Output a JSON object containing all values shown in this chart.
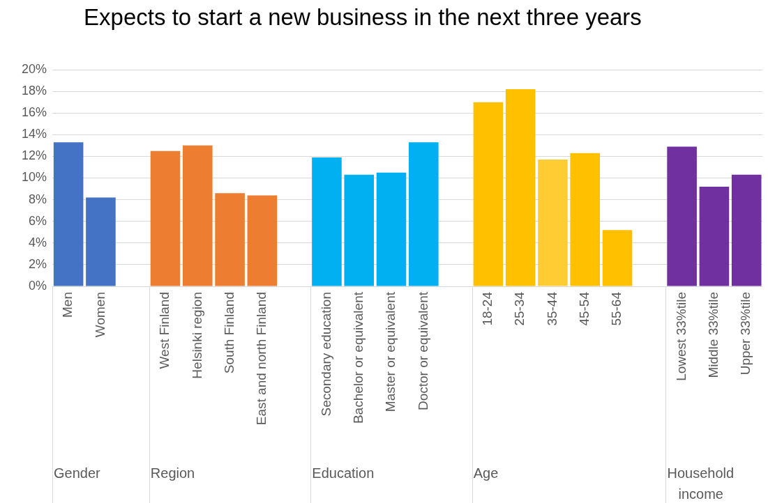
{
  "chart_data": {
    "type": "bar",
    "title": "Expects to start a new business in the next three years",
    "categories": [
      "Men",
      "Women",
      null,
      "West Finland",
      "Helsinki region",
      "South Finland",
      "East and north Finland",
      null,
      "Secondary education",
      "Bachelor or equivalent",
      "Master or equivalent",
      "Doctor or equivalent",
      null,
      "18-24",
      "25-34",
      "35-44",
      "45-54",
      "55-64",
      null,
      "Lowest 33%tile",
      "Middle 33%tile",
      "Upper 33%tile"
    ],
    "values": [
      13.3,
      8.2,
      null,
      12.5,
      13.0,
      8.6,
      8.4,
      null,
      11.9,
      10.3,
      10.5,
      13.3,
      null,
      17.0,
      18.2,
      11.7,
      12.3,
      5.2,
      null,
      12.9,
      9.2,
      10.3
    ],
    "colors": [
      "#4472c4",
      "#4472c4",
      null,
      "#ed7d31",
      "#ed7d31",
      "#ed7d31",
      "#ed7d31",
      null,
      "#00b0f0",
      "#00b0f0",
      "#00b0f0",
      "#00b0f0",
      null,
      "#ffc000",
      "#ffc000",
      "#ffcd33",
      "#ffc000",
      "#ffc000",
      null,
      "#7030a0",
      "#7030a0",
      "#7030a0"
    ],
    "ylim": [
      0,
      20
    ],
    "yticks": [
      {
        "value": 0,
        "label": "0%"
      },
      {
        "value": 2,
        "label": "2%"
      },
      {
        "value": 4,
        "label": "4%"
      },
      {
        "value": 6,
        "label": "6%"
      },
      {
        "value": 8,
        "label": "8%"
      },
      {
        "value": 10,
        "label": "10%"
      },
      {
        "value": 12,
        "label": "12%"
      },
      {
        "value": 14,
        "label": "14%"
      },
      {
        "value": 16,
        "label": "16%"
      },
      {
        "value": 18,
        "label": "18%"
      },
      {
        "value": 20,
        "label": "20%"
      }
    ],
    "grid": "y",
    "legend": false,
    "annotations": [
      "Gender",
      "Region",
      "Education",
      "Age",
      "Household income"
    ]
  }
}
